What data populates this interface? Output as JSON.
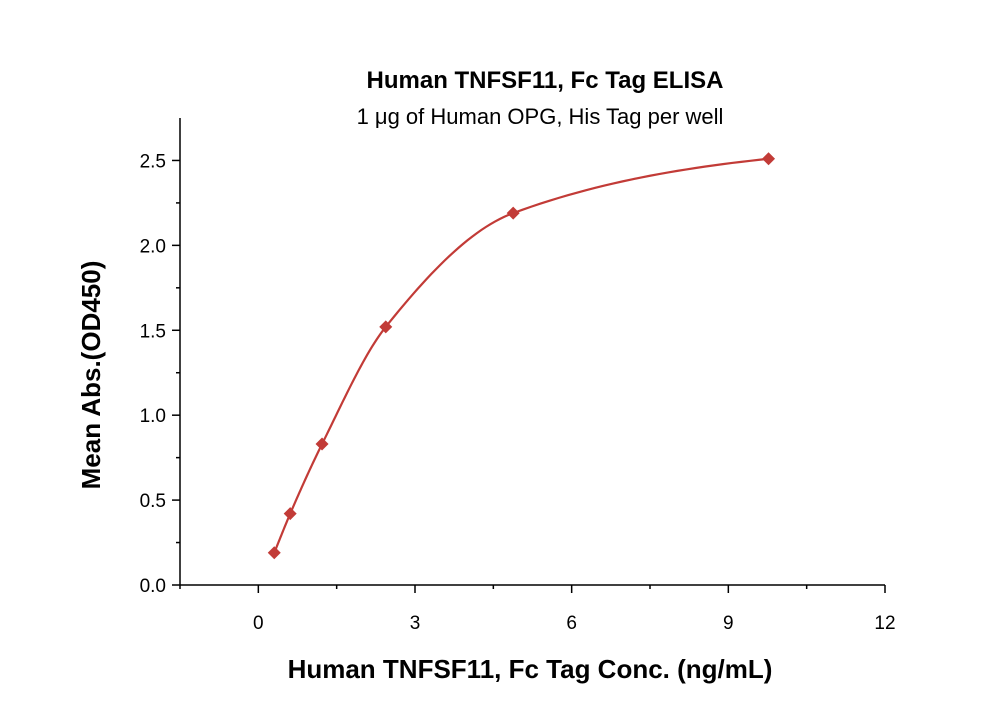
{
  "chart_data": {
    "type": "scatter",
    "title": "Human TNFSF11, Fc Tag ELISA",
    "subtitle": "1 μg of Human OPG, His Tag per well",
    "xlabel": "Human TNFSF11, Fc Tag Conc. (ng/mL)",
    "ylabel": "Mean Abs.(OD450)",
    "xlim": [
      -1.5,
      12
    ],
    "ylim": [
      0,
      2.75
    ],
    "xticks": [
      0,
      3,
      6,
      9,
      12
    ],
    "xtick_labels": [
      "0",
      "3",
      "6",
      "9",
      "12"
    ],
    "yticks": [
      0,
      0.5,
      1.0,
      1.5,
      2.0,
      2.5
    ],
    "ytick_labels": [
      "0.0",
      "0.5",
      "1.0",
      "1.5",
      "2.0",
      "2.5"
    ],
    "series": [
      {
        "x": [
          0.305,
          0.61,
          1.22,
          2.44,
          4.88,
          9.77
        ],
        "y": [
          0.19,
          0.42,
          0.83,
          1.52,
          2.19,
          2.51
        ],
        "marker": "diamond",
        "fit": "curve"
      }
    ],
    "grid": false,
    "color": "#c23b37"
  }
}
